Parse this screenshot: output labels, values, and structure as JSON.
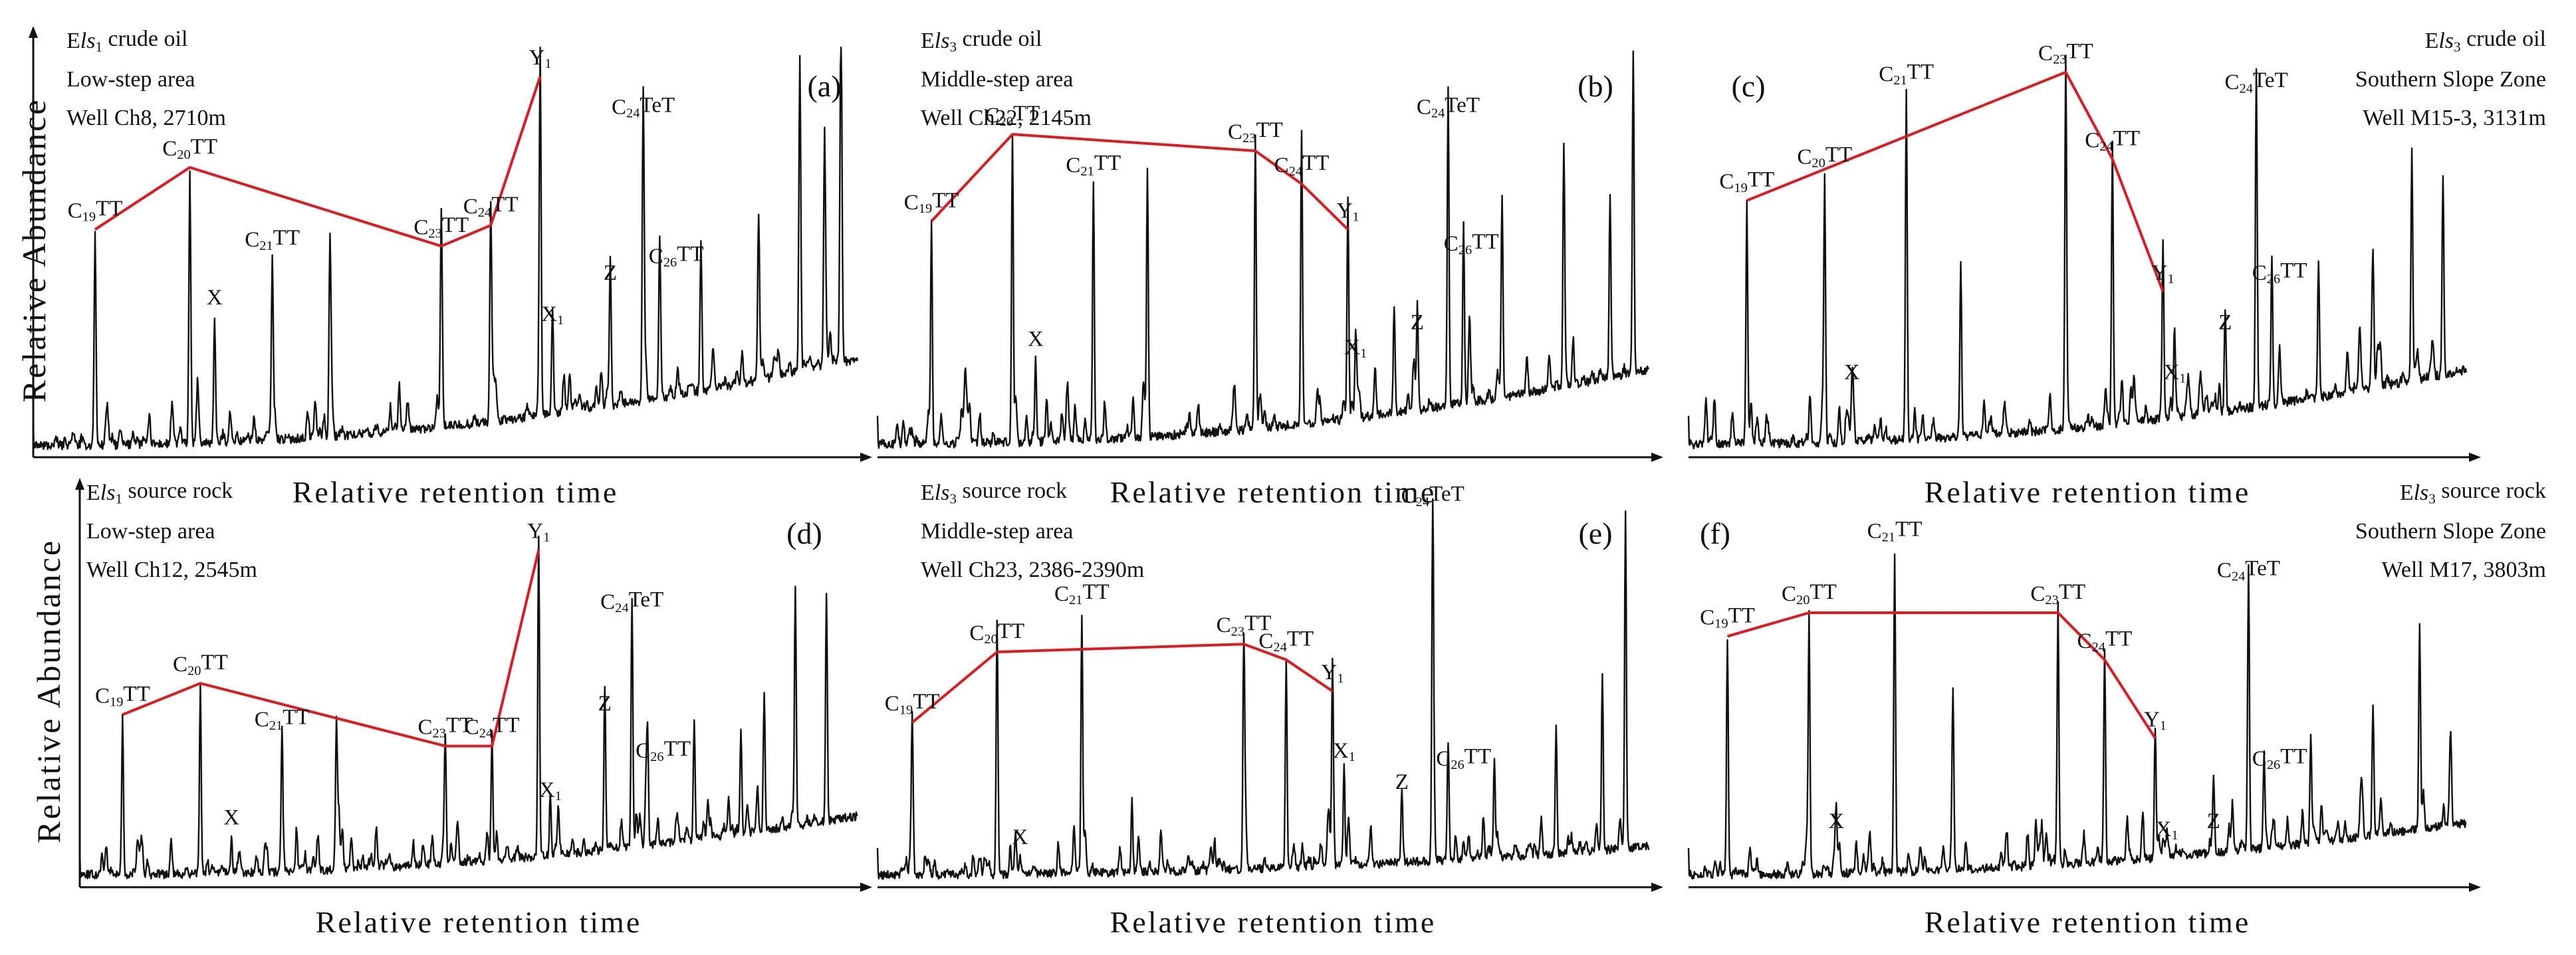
{
  "colors": {
    "trace": "#111111",
    "trend": "#e0191f",
    "axis": "#111111"
  },
  "chart_data": [
    {
      "type": "line",
      "id": "a",
      "tag": "(a)",
      "info": [
        "Els1 crude oil",
        "Low-step area",
        "Well Ch8, 2710m"
      ],
      "title": "Els1 crude oil",
      "ylabel": "Relative Abundance",
      "xlabel": "Relative retention time",
      "xlim": [
        0,
        100
      ],
      "ylim": [
        0,
        100
      ],
      "baseline": {
        "start": 5,
        "end": 35
      },
      "peaks": [
        {
          "label": "C19TT",
          "x": 7.5,
          "y": 55
        },
        {
          "label": "C20TT",
          "x": 19,
          "y": 70
        },
        {
          "label": "X",
          "x": 22,
          "y": 34
        },
        {
          "label": "C21TT",
          "x": 29,
          "y": 48
        },
        {
          "label": "",
          "x": 36,
          "y": 52
        },
        {
          "label": "C23TT",
          "x": 49.5,
          "y": 51
        },
        {
          "label": "C24TT",
          "x": 55.5,
          "y": 56
        },
        {
          "label": "Y1",
          "x": 61.5,
          "y": 92
        },
        {
          "label": "X1",
          "x": 63,
          "y": 30
        },
        {
          "label": "Z",
          "x": 70,
          "y": 40
        },
        {
          "label": "C24TeT",
          "x": 74,
          "y": 80
        },
        {
          "label": "C26TT",
          "x": 76,
          "y": 42
        },
        {
          "label": "",
          "x": 81,
          "y": 40
        },
        {
          "label": "",
          "x": 88,
          "y": 45
        },
        {
          "label": "",
          "x": 93,
          "y": 80
        },
        {
          "label": "",
          "x": 96,
          "y": 60
        },
        {
          "label": "",
          "x": 98,
          "y": 85
        }
      ],
      "trend": [
        {
          "x": 7.5,
          "y": 55
        },
        {
          "x": 19,
          "y": 70
        },
        {
          "x": 49.5,
          "y": 51
        },
        {
          "x": 55.5,
          "y": 56
        },
        {
          "x": 61.5,
          "y": 92
        }
      ],
      "peak_labels": [
        {
          "text": "C19TT",
          "x": 7.5,
          "y": 55
        },
        {
          "text": "C20TT",
          "x": 19,
          "y": 70
        },
        {
          "text": "X",
          "x": 22,
          "y": 34
        },
        {
          "text": "C21TT",
          "x": 29,
          "y": 48
        },
        {
          "text": "C23TT",
          "x": 49.5,
          "y": 51
        },
        {
          "text": "C24TT",
          "x": 55.5,
          "y": 56
        },
        {
          "text": "Y1",
          "x": 61.5,
          "y": 92
        },
        {
          "text": "X1",
          "x": 63,
          "y": 30
        },
        {
          "text": "Z",
          "x": 70,
          "y": 40
        },
        {
          "text": "C24TeT",
          "x": 74,
          "y": 80
        },
        {
          "text": "C26TT",
          "x": 78,
          "y": 44
        }
      ]
    },
    {
      "type": "line",
      "id": "b",
      "tag": "(b)",
      "info": [
        "Els3 crude oil",
        "Middle-step area",
        "Well Ch22, 2145m"
      ],
      "title": "Els3 crude oil",
      "ylabel": "",
      "xlabel": "Relative retention time",
      "xlim": [
        0,
        100
      ],
      "ylim": [
        0,
        100
      ],
      "baseline": {
        "start": 6,
        "end": 30
      },
      "peaks": [
        {
          "label": "C19TT",
          "x": 7,
          "y": 57
        },
        {
          "label": "C20TT",
          "x": 17.5,
          "y": 78
        },
        {
          "label": "X",
          "x": 20.5,
          "y": 24
        },
        {
          "label": "C21TT",
          "x": 28,
          "y": 66
        },
        {
          "label": "",
          "x": 35,
          "y": 68
        },
        {
          "label": "C23TT",
          "x": 49,
          "y": 74
        },
        {
          "label": "C24TT",
          "x": 55,
          "y": 66
        },
        {
          "label": "Y1",
          "x": 61,
          "y": 55
        },
        {
          "label": "X1",
          "x": 62,
          "y": 22
        },
        {
          "label": "",
          "x": 67,
          "y": 30
        },
        {
          "label": "Z",
          "x": 70,
          "y": 28
        },
        {
          "label": "C24TeT",
          "x": 74,
          "y": 80
        },
        {
          "label": "C26TT",
          "x": 76,
          "y": 47
        },
        {
          "label": "",
          "x": 81,
          "y": 42
        },
        {
          "label": "",
          "x": 89,
          "y": 62
        },
        {
          "label": "",
          "x": 95,
          "y": 48
        },
        {
          "label": "",
          "x": 98,
          "y": 82
        }
      ],
      "trend": [
        {
          "x": 7,
          "y": 57
        },
        {
          "x": 17.5,
          "y": 78
        },
        {
          "x": 49,
          "y": 74
        },
        {
          "x": 55,
          "y": 66
        },
        {
          "x": 61,
          "y": 55
        }
      ],
      "peak_labels": [
        {
          "text": "C19TT",
          "x": 7,
          "y": 57
        },
        {
          "text": "C20TT",
          "x": 17.5,
          "y": 78
        },
        {
          "text": "X",
          "x": 20.5,
          "y": 24
        },
        {
          "text": "C21TT",
          "x": 28,
          "y": 66
        },
        {
          "text": "C23TT",
          "x": 49,
          "y": 74
        },
        {
          "text": "C24TT",
          "x": 55,
          "y": 66
        },
        {
          "text": "Y1",
          "x": 61,
          "y": 55
        },
        {
          "text": "X1",
          "x": 62,
          "y": 22
        },
        {
          "text": "Z",
          "x": 70,
          "y": 28
        },
        {
          "text": "C24TeT",
          "x": 74,
          "y": 80
        },
        {
          "text": "C26TT",
          "x": 77,
          "y": 47
        }
      ]
    },
    {
      "type": "line",
      "id": "c",
      "tag": "(c)",
      "info": [
        "Els3 crude oil",
        "Southern Slope Zone",
        "Well M15-3, 3131m"
      ],
      "title": "Els3 crude oil",
      "ylabel": "",
      "xlabel": "Relative retention time",
      "xlim": [
        0,
        100
      ],
      "ylim": [
        0,
        100
      ],
      "baseline": {
        "start": 6,
        "end": 30
      },
      "peaks": [
        {
          "label": "C19TT",
          "x": 7.5,
          "y": 62
        },
        {
          "label": "C20TT",
          "x": 17.5,
          "y": 68
        },
        {
          "label": "X",
          "x": 21,
          "y": 16
        },
        {
          "label": "C21TT",
          "x": 28,
          "y": 88
        },
        {
          "label": "",
          "x": 35,
          "y": 46
        },
        {
          "label": "C23TT",
          "x": 48.5,
          "y": 93
        },
        {
          "label": "C24TT",
          "x": 54.5,
          "y": 72
        },
        {
          "label": "Y1",
          "x": 61,
          "y": 40
        },
        {
          "label": "X1",
          "x": 62.5,
          "y": 16
        },
        {
          "label": "Z",
          "x": 69,
          "y": 28
        },
        {
          "label": "C24TeT",
          "x": 73,
          "y": 86
        },
        {
          "label": "C26TT",
          "x": 75,
          "y": 40
        },
        {
          "label": "",
          "x": 81,
          "y": 36
        },
        {
          "label": "",
          "x": 88,
          "y": 35
        },
        {
          "label": "",
          "x": 93,
          "y": 60
        },
        {
          "label": "",
          "x": 97,
          "y": 50
        }
      ],
      "trend": [
        {
          "x": 7.5,
          "y": 62
        },
        {
          "x": 48.5,
          "y": 93
        },
        {
          "x": 54.5,
          "y": 72
        },
        {
          "x": 61,
          "y": 40
        }
      ],
      "peak_labels": [
        {
          "text": "C19TT",
          "x": 7.5,
          "y": 62
        },
        {
          "text": "C20TT",
          "x": 17.5,
          "y": 68
        },
        {
          "text": "X",
          "x": 21,
          "y": 16
        },
        {
          "text": "C21TT",
          "x": 28,
          "y": 88
        },
        {
          "text": "C23TT",
          "x": 48.5,
          "y": 93
        },
        {
          "text": "C24TT",
          "x": 54.5,
          "y": 72
        },
        {
          "text": "Y1",
          "x": 61,
          "y": 40
        },
        {
          "text": "X1",
          "x": 62.5,
          "y": 16
        },
        {
          "text": "Z",
          "x": 69,
          "y": 28
        },
        {
          "text": "C24TeT",
          "x": 73,
          "y": 86
        },
        {
          "text": "C26TT",
          "x": 76,
          "y": 40
        }
      ]
    },
    {
      "type": "line",
      "id": "d",
      "tag": "(d)",
      "info": [
        "Els1 source rock",
        "Low-step area",
        "Well Ch12, 2545m"
      ],
      "title": "Els1 source rock",
      "ylabel": "Relative Abundance",
      "xlabel": "Relative retention time",
      "xlim": [
        0,
        100
      ],
      "ylim": [
        0,
        100
      ],
      "baseline": {
        "start": 6,
        "end": 25
      },
      "peaks": [
        {
          "label": "C19TT",
          "x": 5.5,
          "y": 44
        },
        {
          "label": "C20TT",
          "x": 15.5,
          "y": 52
        },
        {
          "label": "X",
          "x": 19.5,
          "y": 13
        },
        {
          "label": "C21TT",
          "x": 26,
          "y": 38
        },
        {
          "label": "",
          "x": 33,
          "y": 40
        },
        {
          "label": "C23TT",
          "x": 47,
          "y": 36
        },
        {
          "label": "C24TT",
          "x": 53,
          "y": 36
        },
        {
          "label": "Y1",
          "x": 59,
          "y": 86
        },
        {
          "label": "X1",
          "x": 60.5,
          "y": 20
        },
        {
          "label": "Z",
          "x": 67.5,
          "y": 42
        },
        {
          "label": "C24TeT",
          "x": 71,
          "y": 68
        },
        {
          "label": "C26TT",
          "x": 73,
          "y": 30
        },
        {
          "label": "",
          "x": 79,
          "y": 34
        },
        {
          "label": "",
          "x": 85,
          "y": 30
        },
        {
          "label": "",
          "x": 88,
          "y": 40
        },
        {
          "label": "",
          "x": 92,
          "y": 65
        },
        {
          "label": "",
          "x": 96,
          "y": 62
        }
      ],
      "trend": [
        {
          "x": 5.5,
          "y": 44
        },
        {
          "x": 15.5,
          "y": 52
        },
        {
          "x": 47,
          "y": 36
        },
        {
          "x": 53,
          "y": 36
        },
        {
          "x": 59,
          "y": 86
        }
      ],
      "peak_labels": [
        {
          "text": "C19TT",
          "x": 5.5,
          "y": 44
        },
        {
          "text": "C20TT",
          "x": 15.5,
          "y": 52
        },
        {
          "text": "X",
          "x": 19.5,
          "y": 13
        },
        {
          "text": "C21TT",
          "x": 26,
          "y": 38
        },
        {
          "text": "C23TT",
          "x": 47,
          "y": 36
        },
        {
          "text": "C24TT",
          "x": 53,
          "y": 36
        },
        {
          "text": "Y1",
          "x": 59,
          "y": 86
        },
        {
          "text": "X1",
          "x": 60.5,
          "y": 20
        },
        {
          "text": "Z",
          "x": 67.5,
          "y": 42
        },
        {
          "text": "C24TeT",
          "x": 71,
          "y": 68
        },
        {
          "text": "C26TT",
          "x": 75,
          "y": 30
        }
      ]
    },
    {
      "type": "line",
      "id": "e",
      "tag": "(e)",
      "info": [
        "Els3 source rock",
        "Middle-step area",
        "Well Ch23, 2386-2390m"
      ],
      "title": "Els3 source rock",
      "ylabel": "",
      "xlabel": "Relative retention time",
      "xlim": [
        0,
        100
      ],
      "ylim": [
        0,
        100
      ],
      "baseline": {
        "start": 6,
        "end": 12
      },
      "peaks": [
        {
          "label": "C19TT",
          "x": 4.5,
          "y": 42
        },
        {
          "label": "C20TT",
          "x": 15.5,
          "y": 60
        },
        {
          "label": "X",
          "x": 18.5,
          "y": 8
        },
        {
          "label": "C21TT",
          "x": 26.5,
          "y": 70
        },
        {
          "label": "",
          "x": 33,
          "y": 22
        },
        {
          "label": "C23TT",
          "x": 47.5,
          "y": 62
        },
        {
          "label": "C24TT",
          "x": 53,
          "y": 58
        },
        {
          "label": "Y1",
          "x": 59,
          "y": 50
        },
        {
          "label": "X1",
          "x": 60.5,
          "y": 30
        },
        {
          "label": "Z",
          "x": 68,
          "y": 22
        },
        {
          "label": "C24TeT",
          "x": 72,
          "y": 95
        },
        {
          "label": "C26TT",
          "x": 74,
          "y": 28
        },
        {
          "label": "",
          "x": 80,
          "y": 30
        },
        {
          "label": "",
          "x": 88,
          "y": 36
        },
        {
          "label": "",
          "x": 94,
          "y": 48
        },
        {
          "label": "",
          "x": 97,
          "y": 90
        }
      ],
      "trend": [
        {
          "x": 4.5,
          "y": 42
        },
        {
          "x": 15.5,
          "y": 60
        },
        {
          "x": 47.5,
          "y": 62
        },
        {
          "x": 53,
          "y": 58
        },
        {
          "x": 59,
          "y": 50
        }
      ],
      "peak_labels": [
        {
          "text": "C19TT",
          "x": 4.5,
          "y": 42
        },
        {
          "text": "C20TT",
          "x": 15.5,
          "y": 60
        },
        {
          "text": "X",
          "x": 18.5,
          "y": 8
        },
        {
          "text": "C21TT",
          "x": 26.5,
          "y": 70
        },
        {
          "text": "C23TT",
          "x": 47.5,
          "y": 62
        },
        {
          "text": "C24TT",
          "x": 53,
          "y": 58
        },
        {
          "text": "Y1",
          "x": 59,
          "y": 50
        },
        {
          "text": "X1",
          "x": 60.5,
          "y": 30
        },
        {
          "text": "Z",
          "x": 68,
          "y": 22
        },
        {
          "text": "C24TeT",
          "x": 72,
          "y": 95
        },
        {
          "text": "C26TT",
          "x": 76,
          "y": 28
        }
      ]
    },
    {
      "type": "line",
      "id": "f",
      "tag": "(f)",
      "info": [
        "Els3 source rock",
        "Southern Slope Zone",
        "Well M17, 3803m"
      ],
      "title": "Els3 source rock",
      "ylabel": "",
      "xlabel": "Relative retention time",
      "xlim": [
        0,
        100
      ],
      "ylim": [
        0,
        100
      ],
      "baseline": {
        "start": 6,
        "end": 22
      },
      "peaks": [
        {
          "label": "C19TT",
          "x": 5,
          "y": 64
        },
        {
          "label": "C20TT",
          "x": 15.5,
          "y": 70
        },
        {
          "label": "X",
          "x": 19,
          "y": 12
        },
        {
          "label": "C21TT",
          "x": 26.5,
          "y": 86
        },
        {
          "label": "",
          "x": 34,
          "y": 48
        },
        {
          "label": "C23TT",
          "x": 47.5,
          "y": 70
        },
        {
          "label": "C24TT",
          "x": 53.5,
          "y": 58
        },
        {
          "label": "Y1",
          "x": 60,
          "y": 38
        },
        {
          "label": "X1",
          "x": 61.5,
          "y": 10
        },
        {
          "label": "Z",
          "x": 67.5,
          "y": 12
        },
        {
          "label": "C24TeT",
          "x": 72,
          "y": 76
        },
        {
          "label": "C26TT",
          "x": 74,
          "y": 28
        },
        {
          "label": "",
          "x": 80,
          "y": 30
        },
        {
          "label": "",
          "x": 88,
          "y": 30
        },
        {
          "label": "",
          "x": 94,
          "y": 56
        },
        {
          "label": "",
          "x": 98,
          "y": 26
        }
      ],
      "trend": [
        {
          "x": 5,
          "y": 64
        },
        {
          "x": 15.5,
          "y": 70
        },
        {
          "x": 47.5,
          "y": 70
        },
        {
          "x": 53.5,
          "y": 58
        },
        {
          "x": 60,
          "y": 38
        }
      ],
      "peak_labels": [
        {
          "text": "C19TT",
          "x": 5,
          "y": 64
        },
        {
          "text": "C20TT",
          "x": 15.5,
          "y": 70
        },
        {
          "text": "X",
          "x": 19,
          "y": 12
        },
        {
          "text": "C21TT",
          "x": 26.5,
          "y": 86
        },
        {
          "text": "C23TT",
          "x": 47.5,
          "y": 70
        },
        {
          "text": "C24TT",
          "x": 53.5,
          "y": 58
        },
        {
          "text": "Y1",
          "x": 60,
          "y": 38
        },
        {
          "text": "X1",
          "x": 61.5,
          "y": 10
        },
        {
          "text": "Z",
          "x": 67.5,
          "y": 12
        },
        {
          "text": "C24TeT",
          "x": 72,
          "y": 76
        },
        {
          "text": "C26TT",
          "x": 76,
          "y": 28
        }
      ]
    }
  ]
}
